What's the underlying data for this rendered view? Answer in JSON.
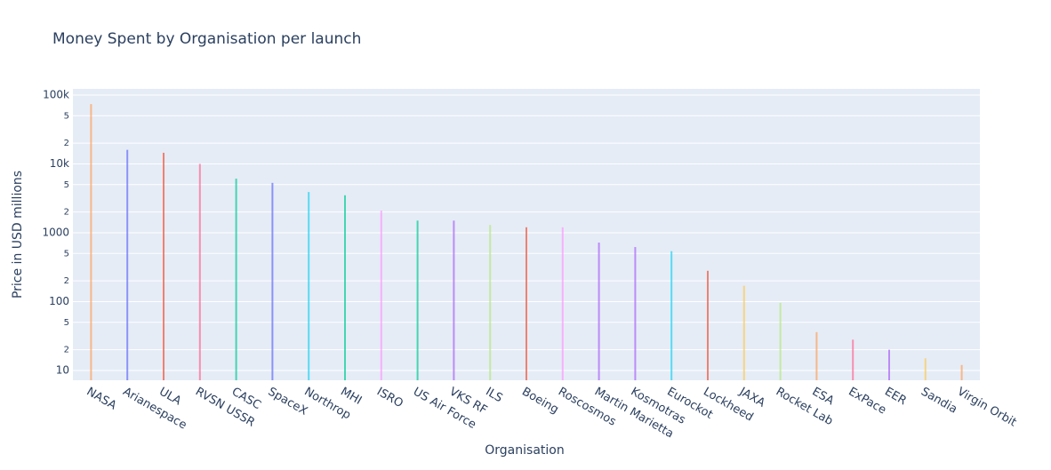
{
  "chart_data": {
    "type": "bar",
    "title": "Money Spent by Organisation per launch",
    "x_label": "Organisation",
    "y_label": "Price in USD millions",
    "categories": [
      "NASA",
      "Arianespace",
      "ULA",
      "RVSN USSR",
      "CASC",
      "SpaceX",
      "Northrop",
      "MHI",
      "ISRO",
      "US Air Force",
      "VKS RF",
      "ILS",
      "Boeing",
      "Roscosmos",
      "Martin Marietta",
      "Kosmotras",
      "Eurockot",
      "Lockheed",
      "JAXA",
      "Rocket Lab",
      "ESA",
      "ExPace",
      "EER",
      "Sandia",
      "Virgin Orbit"
    ],
    "values": [
      74000,
      16000,
      14500,
      10000,
      6100,
      5300,
      3900,
      3500,
      2100,
      1500,
      1500,
      1300,
      1200,
      1200,
      720,
      620,
      540,
      280,
      170,
      96,
      36,
      28,
      20,
      15,
      12
    ],
    "colors": [
      "#FFA15A",
      "#636EFA",
      "#EF553B",
      "#FF6692",
      "#00CC96",
      "#636EFA",
      "#19D3F3",
      "#00CC96",
      "#FF97FF",
      "#00CC96",
      "#AB63FA",
      "#B6E880",
      "#EF553B",
      "#FF97FF",
      "#AB63FA",
      "#AB63FA",
      "#19D3F3",
      "#EF553B",
      "#FECB52",
      "#B6E880",
      "#FFA15A",
      "#FF6692",
      "#AB63FA",
      "#FECB52",
      "#FFA15A"
    ],
    "log_y": true,
    "grid": true,
    "ylim": [
      7.2,
      123000
    ],
    "yticks": [
      10,
      {
        "value": 20,
        "label": "2"
      },
      {
        "value": 50,
        "label": "5"
      },
      100,
      {
        "value": 200,
        "label": "2"
      },
      {
        "value": 500,
        "label": "5"
      },
      1000,
      {
        "value": 2000,
        "label": "2"
      },
      {
        "value": 5000,
        "label": "5"
      },
      {
        "value": 10000,
        "label": "10k"
      },
      {
        "value": 20000,
        "label": "2"
      },
      {
        "value": 50000,
        "label": "5"
      },
      {
        "value": 100000,
        "label": "100k"
      }
    ]
  }
}
